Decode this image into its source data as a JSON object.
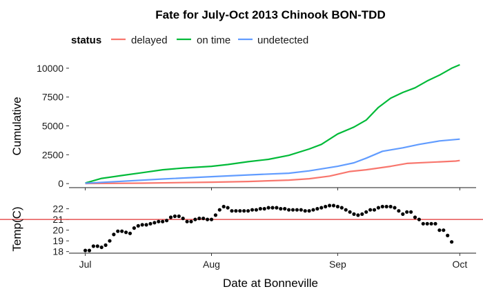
{
  "chart_data": [
    {
      "type": "line",
      "title": "Fate for July-Oct 2013 Chinook BON-TDD",
      "ylabel": "Cumulative",
      "ylim": [
        -350,
        10650
      ],
      "yticks": [
        0,
        2500,
        5000,
        7500,
        10000
      ],
      "legend": {
        "title": "status",
        "placement": "top"
      },
      "series": [
        {
          "name": "delayed",
          "color": "#F8766D",
          "points": [
            [
              "2013-07-01",
              0
            ],
            [
              "2013-07-15",
              40
            ],
            [
              "2013-08-01",
              120
            ],
            [
              "2013-08-10",
              180
            ],
            [
              "2013-08-20",
              300
            ],
            [
              "2013-08-25",
              420
            ],
            [
              "2013-08-30",
              650
            ],
            [
              "2013-09-04",
              1050
            ],
            [
              "2013-09-08",
              1200
            ],
            [
              "2013-09-14",
              1500
            ],
            [
              "2013-09-18",
              1750
            ],
            [
              "2013-09-24",
              1850
            ],
            [
              "2013-09-30",
              1950
            ],
            [
              "2013-10-01",
              2000
            ]
          ]
        },
        {
          "name": "on time",
          "color": "#00BA38",
          "points": [
            [
              "2013-07-01",
              50
            ],
            [
              "2013-07-05",
              450
            ],
            [
              "2013-07-10",
              700
            ],
            [
              "2013-07-15",
              950
            ],
            [
              "2013-07-20",
              1200
            ],
            [
              "2013-07-25",
              1350
            ],
            [
              "2013-08-01",
              1500
            ],
            [
              "2013-08-05",
              1650
            ],
            [
              "2013-08-10",
              1900
            ],
            [
              "2013-08-15",
              2100
            ],
            [
              "2013-08-20",
              2450
            ],
            [
              "2013-08-25",
              3000
            ],
            [
              "2013-08-28",
              3400
            ],
            [
              "2013-09-01",
              4300
            ],
            [
              "2013-09-05",
              4900
            ],
            [
              "2013-09-08",
              5500
            ],
            [
              "2013-09-11",
              6600
            ],
            [
              "2013-09-14",
              7400
            ],
            [
              "2013-09-17",
              7900
            ],
            [
              "2013-09-20",
              8300
            ],
            [
              "2013-09-23",
              8900
            ],
            [
              "2013-09-26",
              9400
            ],
            [
              "2013-09-29",
              10000
            ],
            [
              "2013-10-01",
              10300
            ]
          ]
        },
        {
          "name": "undetected",
          "color": "#619CFF",
          "points": [
            [
              "2013-07-01",
              30
            ],
            [
              "2013-07-10",
              200
            ],
            [
              "2013-07-20",
              400
            ],
            [
              "2013-08-01",
              600
            ],
            [
              "2013-08-10",
              750
            ],
            [
              "2013-08-20",
              900
            ],
            [
              "2013-08-25",
              1100
            ],
            [
              "2013-09-01",
              1500
            ],
            [
              "2013-09-05",
              1800
            ],
            [
              "2013-09-08",
              2200
            ],
            [
              "2013-09-12",
              2800
            ],
            [
              "2013-09-17",
              3100
            ],
            [
              "2013-09-21",
              3400
            ],
            [
              "2013-09-26",
              3700
            ],
            [
              "2013-10-01",
              3850
            ]
          ]
        }
      ]
    },
    {
      "type": "scatter",
      "ylabel": "Temp(C)",
      "xlabel": "Date at Bonneville",
      "xlim": [
        "2013-06-27",
        "2013-10-05"
      ],
      "xticks": [
        {
          "date": "2013-07-01",
          "label": "Jul"
        },
        {
          "date": "2013-08-01",
          "label": "Aug"
        },
        {
          "date": "2013-09-01",
          "label": "Sep"
        },
        {
          "date": "2013-10-01",
          "label": "Oct"
        }
      ],
      "ylim": [
        17.85,
        22.75
      ],
      "yticks": [
        18,
        19,
        20,
        21,
        22
      ],
      "reference_line": {
        "y": 21,
        "color": "#e03030"
      },
      "point_color": "#000000",
      "points": [
        [
          "2013-07-01",
          18.1
        ],
        [
          "2013-07-02",
          18.1
        ],
        [
          "2013-07-03",
          18.5
        ],
        [
          "2013-07-04",
          18.5
        ],
        [
          "2013-07-05",
          18.4
        ],
        [
          "2013-07-06",
          18.6
        ],
        [
          "2013-07-07",
          19.0
        ],
        [
          "2013-07-08",
          19.6
        ],
        [
          "2013-07-09",
          19.9
        ],
        [
          "2013-07-10",
          19.9
        ],
        [
          "2013-07-11",
          19.8
        ],
        [
          "2013-07-12",
          19.7
        ],
        [
          "2013-07-13",
          20.2
        ],
        [
          "2013-07-14",
          20.4
        ],
        [
          "2013-07-15",
          20.5
        ],
        [
          "2013-07-16",
          20.5
        ],
        [
          "2013-07-17",
          20.6
        ],
        [
          "2013-07-18",
          20.7
        ],
        [
          "2013-07-19",
          20.8
        ],
        [
          "2013-07-20",
          20.8
        ],
        [
          "2013-07-21",
          20.9
        ],
        [
          "2013-07-22",
          21.2
        ],
        [
          "2013-07-23",
          21.3
        ],
        [
          "2013-07-24",
          21.3
        ],
        [
          "2013-07-25",
          21.1
        ],
        [
          "2013-07-26",
          20.8
        ],
        [
          "2013-07-27",
          20.8
        ],
        [
          "2013-07-28",
          21.0
        ],
        [
          "2013-07-29",
          21.1
        ],
        [
          "2013-07-30",
          21.1
        ],
        [
          "2013-07-31",
          21.0
        ],
        [
          "2013-08-01",
          21.0
        ],
        [
          "2013-08-02",
          21.4
        ],
        [
          "2013-08-03",
          21.9
        ],
        [
          "2013-08-04",
          22.2
        ],
        [
          "2013-08-05",
          22.1
        ],
        [
          "2013-08-06",
          21.8
        ],
        [
          "2013-08-07",
          21.8
        ],
        [
          "2013-08-08",
          21.8
        ],
        [
          "2013-08-09",
          21.8
        ],
        [
          "2013-08-10",
          21.8
        ],
        [
          "2013-08-11",
          21.9
        ],
        [
          "2013-08-12",
          21.9
        ],
        [
          "2013-08-13",
          22.0
        ],
        [
          "2013-08-14",
          22.0
        ],
        [
          "2013-08-15",
          22.1
        ],
        [
          "2013-08-16",
          22.1
        ],
        [
          "2013-08-17",
          22.1
        ],
        [
          "2013-08-18",
          22.0
        ],
        [
          "2013-08-19",
          22.0
        ],
        [
          "2013-08-20",
          21.9
        ],
        [
          "2013-08-21",
          21.9
        ],
        [
          "2013-08-22",
          21.9
        ],
        [
          "2013-08-23",
          21.9
        ],
        [
          "2013-08-24",
          21.8
        ],
        [
          "2013-08-25",
          21.8
        ],
        [
          "2013-08-26",
          21.9
        ],
        [
          "2013-08-27",
          22.0
        ],
        [
          "2013-08-28",
          22.1
        ],
        [
          "2013-08-29",
          22.2
        ],
        [
          "2013-08-30",
          22.3
        ],
        [
          "2013-08-31",
          22.3
        ],
        [
          "2013-09-01",
          22.2
        ],
        [
          "2013-09-02",
          22.1
        ],
        [
          "2013-09-03",
          21.9
        ],
        [
          "2013-09-04",
          21.7
        ],
        [
          "2013-09-05",
          21.5
        ],
        [
          "2013-09-06",
          21.4
        ],
        [
          "2013-09-07",
          21.5
        ],
        [
          "2013-09-08",
          21.7
        ],
        [
          "2013-09-09",
          21.9
        ],
        [
          "2013-09-10",
          21.9
        ],
        [
          "2013-09-11",
          22.1
        ],
        [
          "2013-09-12",
          22.2
        ],
        [
          "2013-09-13",
          22.2
        ],
        [
          "2013-09-14",
          22.2
        ],
        [
          "2013-09-15",
          22.1
        ],
        [
          "2013-09-16",
          21.8
        ],
        [
          "2013-09-17",
          21.5
        ],
        [
          "2013-09-18",
          21.7
        ],
        [
          "2013-09-19",
          21.7
        ],
        [
          "2013-09-20",
          21.2
        ],
        [
          "2013-09-21",
          21.0
        ],
        [
          "2013-09-22",
          20.6
        ],
        [
          "2013-09-23",
          20.6
        ],
        [
          "2013-09-24",
          20.6
        ],
        [
          "2013-09-25",
          20.6
        ],
        [
          "2013-09-26",
          20.0
        ],
        [
          "2013-09-27",
          20.0
        ],
        [
          "2013-09-28",
          19.5
        ],
        [
          "2013-09-29",
          18.9
        ]
      ]
    }
  ]
}
